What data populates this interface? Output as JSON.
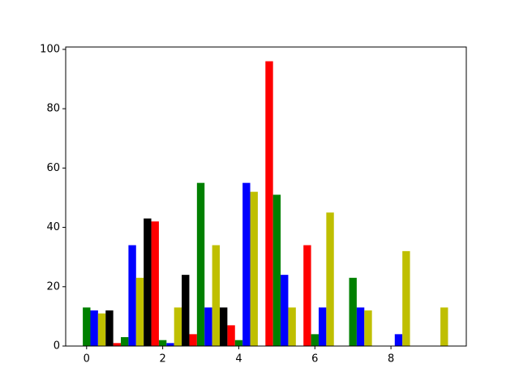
{
  "chart_data": {
    "type": "histogram",
    "bins": [
      -0.3,
      0.7,
      1.7,
      2.7,
      3.7,
      4.7,
      5.7,
      6.7,
      7.7,
      8.7,
      9.7
    ],
    "series": [
      {
        "color": "#ff0000",
        "values": [
          0,
          1,
          42,
          4,
          7,
          96,
          34,
          0,
          0,
          0
        ]
      },
      {
        "color": "#008000",
        "values": [
          13,
          3,
          2,
          55,
          2,
          51,
          4,
          23,
          0,
          0
        ]
      },
      {
        "color": "#0000ff",
        "values": [
          12,
          34,
          1,
          13,
          55,
          24,
          13,
          13,
          4,
          0
        ]
      },
      {
        "color": "#bfbf00",
        "values": [
          11,
          23,
          13,
          34,
          52,
          13,
          45,
          12,
          32,
          13
        ]
      },
      {
        "color": "#000000",
        "values": [
          12,
          43,
          24,
          13,
          0,
          0,
          0,
          0,
          0,
          0
        ]
      }
    ],
    "xlim": [
      -0.55,
      9.98
    ],
    "xticks": [
      0,
      2,
      4,
      6,
      8
    ],
    "ylim": [
      0,
      100.8
    ],
    "yticks": [
      0,
      20,
      40,
      60,
      80,
      100
    ],
    "grid": false
  }
}
